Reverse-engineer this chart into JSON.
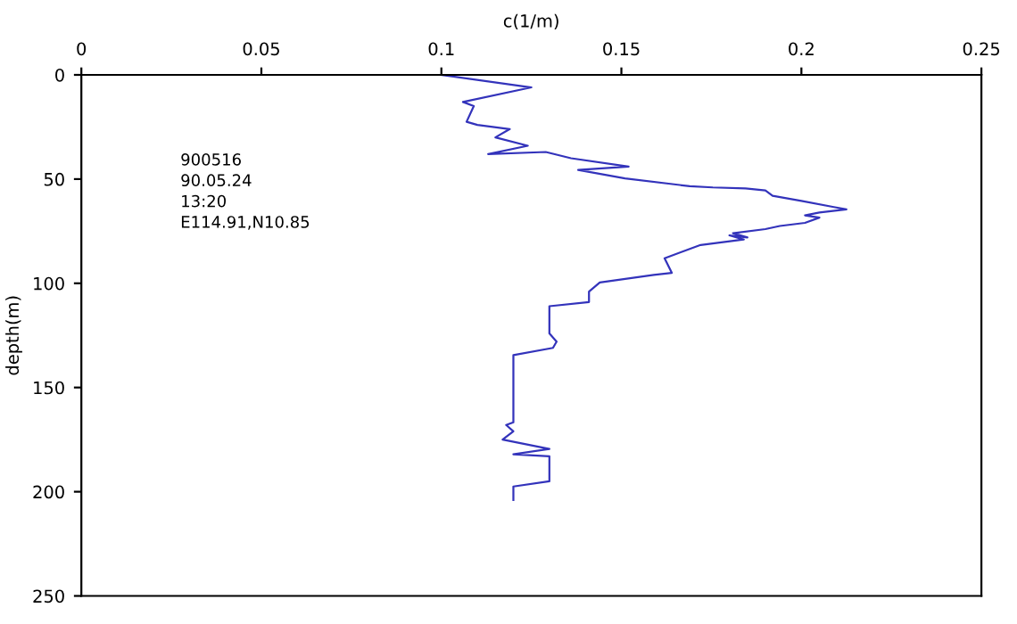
{
  "chart_data": {
    "type": "line",
    "xlabel": "c(1/m)",
    "ylabel": "depth(m)",
    "xlim": [
      0,
      0.25
    ],
    "xticks": [
      0,
      0.05,
      0.1,
      0.15,
      0.2,
      0.25
    ],
    "ylim": [
      250,
      0
    ],
    "yticks": [
      0,
      50,
      100,
      150,
      200,
      250
    ],
    "grid": false,
    "legend": false,
    "annotations": [
      "900516",
      "90.05.24",
      "13:20",
      "E114.91,N10.85"
    ],
    "series": [
      {
        "color": "#3333bb",
        "x": [
          0.1,
          0.125,
          0.106,
          0.109,
          0.107,
          0.11,
          0.119,
          0.115,
          0.124,
          0.113,
          0.129,
          0.136,
          0.152,
          0.138,
          0.151,
          0.169,
          0.1754,
          0.1845,
          0.19,
          0.192,
          0.2,
          0.209,
          0.2125,
          0.205,
          0.201,
          0.205,
          0.201,
          0.194,
          0.19,
          0.181,
          0.185,
          0.18,
          0.184,
          0.172,
          0.162,
          0.164,
          0.159,
          0.144,
          0.141,
          0.141,
          0.13,
          0.13,
          0.132,
          0.131,
          0.12,
          0.12,
          0.118,
          0.12,
          0.117,
          0.13,
          0.12,
          0.13,
          0.13,
          0.12,
          0.12
        ],
        "values": [
          0,
          6,
          13,
          15,
          22.5,
          24,
          26,
          30,
          34,
          38,
          37,
          40,
          44,
          45.6,
          49.7,
          53.4,
          54,
          54.5,
          55.4,
          58,
          60.5,
          63.4,
          64.5,
          66,
          67.4,
          68.5,
          71,
          72.5,
          74,
          76,
          78,
          77,
          79,
          81.6,
          88,
          95,
          96,
          99.6,
          104,
          109,
          111,
          124,
          128,
          131,
          134.5,
          166.7,
          168,
          171,
          175,
          179.5,
          182,
          183,
          195,
          197.5,
          204
        ]
      }
    ]
  }
}
